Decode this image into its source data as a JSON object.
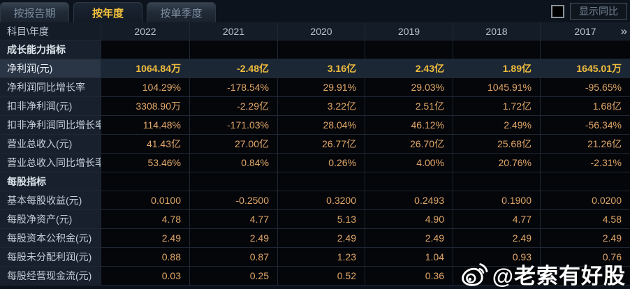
{
  "tabs": [
    {
      "label": "按报告期",
      "active": false
    },
    {
      "label": "按年度",
      "active": true
    },
    {
      "label": "按单季度",
      "active": false
    }
  ],
  "controls": {
    "show_yoy_label": "显示同比",
    "checkbox_checked": false
  },
  "table": {
    "corner_header": "科目\\年度",
    "year_headers": [
      "2022",
      "2021",
      "2020",
      "2019",
      "2018",
      "2017"
    ],
    "more_icon": "»",
    "rows": [
      {
        "type": "section",
        "label": "成长能力指标",
        "values": [
          "",
          "",
          "",
          "",
          "",
          ""
        ]
      },
      {
        "type": "highlight",
        "label": "净利润(元)",
        "values": [
          "1064.84万",
          "-2.48亿",
          "3.16亿",
          "2.43亿",
          "1.89亿",
          "1645.01万"
        ]
      },
      {
        "type": "data",
        "label": "净利润同比增长率",
        "values": [
          "104.29%",
          "-178.54%",
          "29.91%",
          "29.03%",
          "1045.91%",
          "-95.65%"
        ]
      },
      {
        "type": "data",
        "label": "扣非净利润(元)",
        "values": [
          "3308.90万",
          "-2.29亿",
          "3.22亿",
          "2.51亿",
          "1.72亿",
          "1.68亿"
        ]
      },
      {
        "type": "data",
        "label": "扣非净利润同比增长率",
        "values": [
          "114.48%",
          "-171.03%",
          "28.04%",
          "46.12%",
          "2.49%",
          "-56.34%"
        ]
      },
      {
        "type": "data",
        "label": "营业总收入(元)",
        "values": [
          "41.43亿",
          "27.00亿",
          "26.77亿",
          "26.70亿",
          "25.68亿",
          "21.26亿"
        ]
      },
      {
        "type": "data",
        "label": "营业总收入同比增长率",
        "values": [
          "53.46%",
          "0.84%",
          "0.26%",
          "4.00%",
          "20.76%",
          "-2.31%"
        ]
      },
      {
        "type": "section",
        "label": "每股指标",
        "values": [
          "",
          "",
          "",
          "",
          "",
          ""
        ]
      },
      {
        "type": "data",
        "label": "基本每股收益(元)",
        "values": [
          "0.0100",
          "-0.2500",
          "0.3200",
          "0.2493",
          "0.1900",
          "0.0200"
        ]
      },
      {
        "type": "data",
        "label": "每股净资产(元)",
        "values": [
          "4.78",
          "4.77",
          "5.13",
          "4.90",
          "4.77",
          "4.58"
        ]
      },
      {
        "type": "data",
        "label": "每股资本公积金(元)",
        "values": [
          "2.49",
          "2.49",
          "2.49",
          "2.49",
          "2.49",
          "2.49"
        ]
      },
      {
        "type": "data",
        "label": "每股未分配利润(元)",
        "values": [
          "0.88",
          "0.87",
          "1.23",
          "1.04",
          "0.93",
          "0.76"
        ]
      },
      {
        "type": "data",
        "label": "每股经营现金流(元)",
        "values": [
          "0.03",
          "0.25",
          "0.52",
          "0.36",
          "",
          ""
        ]
      }
    ]
  },
  "watermark": {
    "icon": "weibo-logo",
    "text": "@老索有好股"
  },
  "colors": {
    "page_background": "#04060a",
    "label_column_background": "#17202c",
    "header_background": "#141c28",
    "highlight_row_background": "#1c2736",
    "highlight_value_gold": "#f0bd3d",
    "value_orange": "#e2a768",
    "active_tab_text": "#f5c33c",
    "border": "#1e2733",
    "watermark_white": "#ffffff"
  }
}
